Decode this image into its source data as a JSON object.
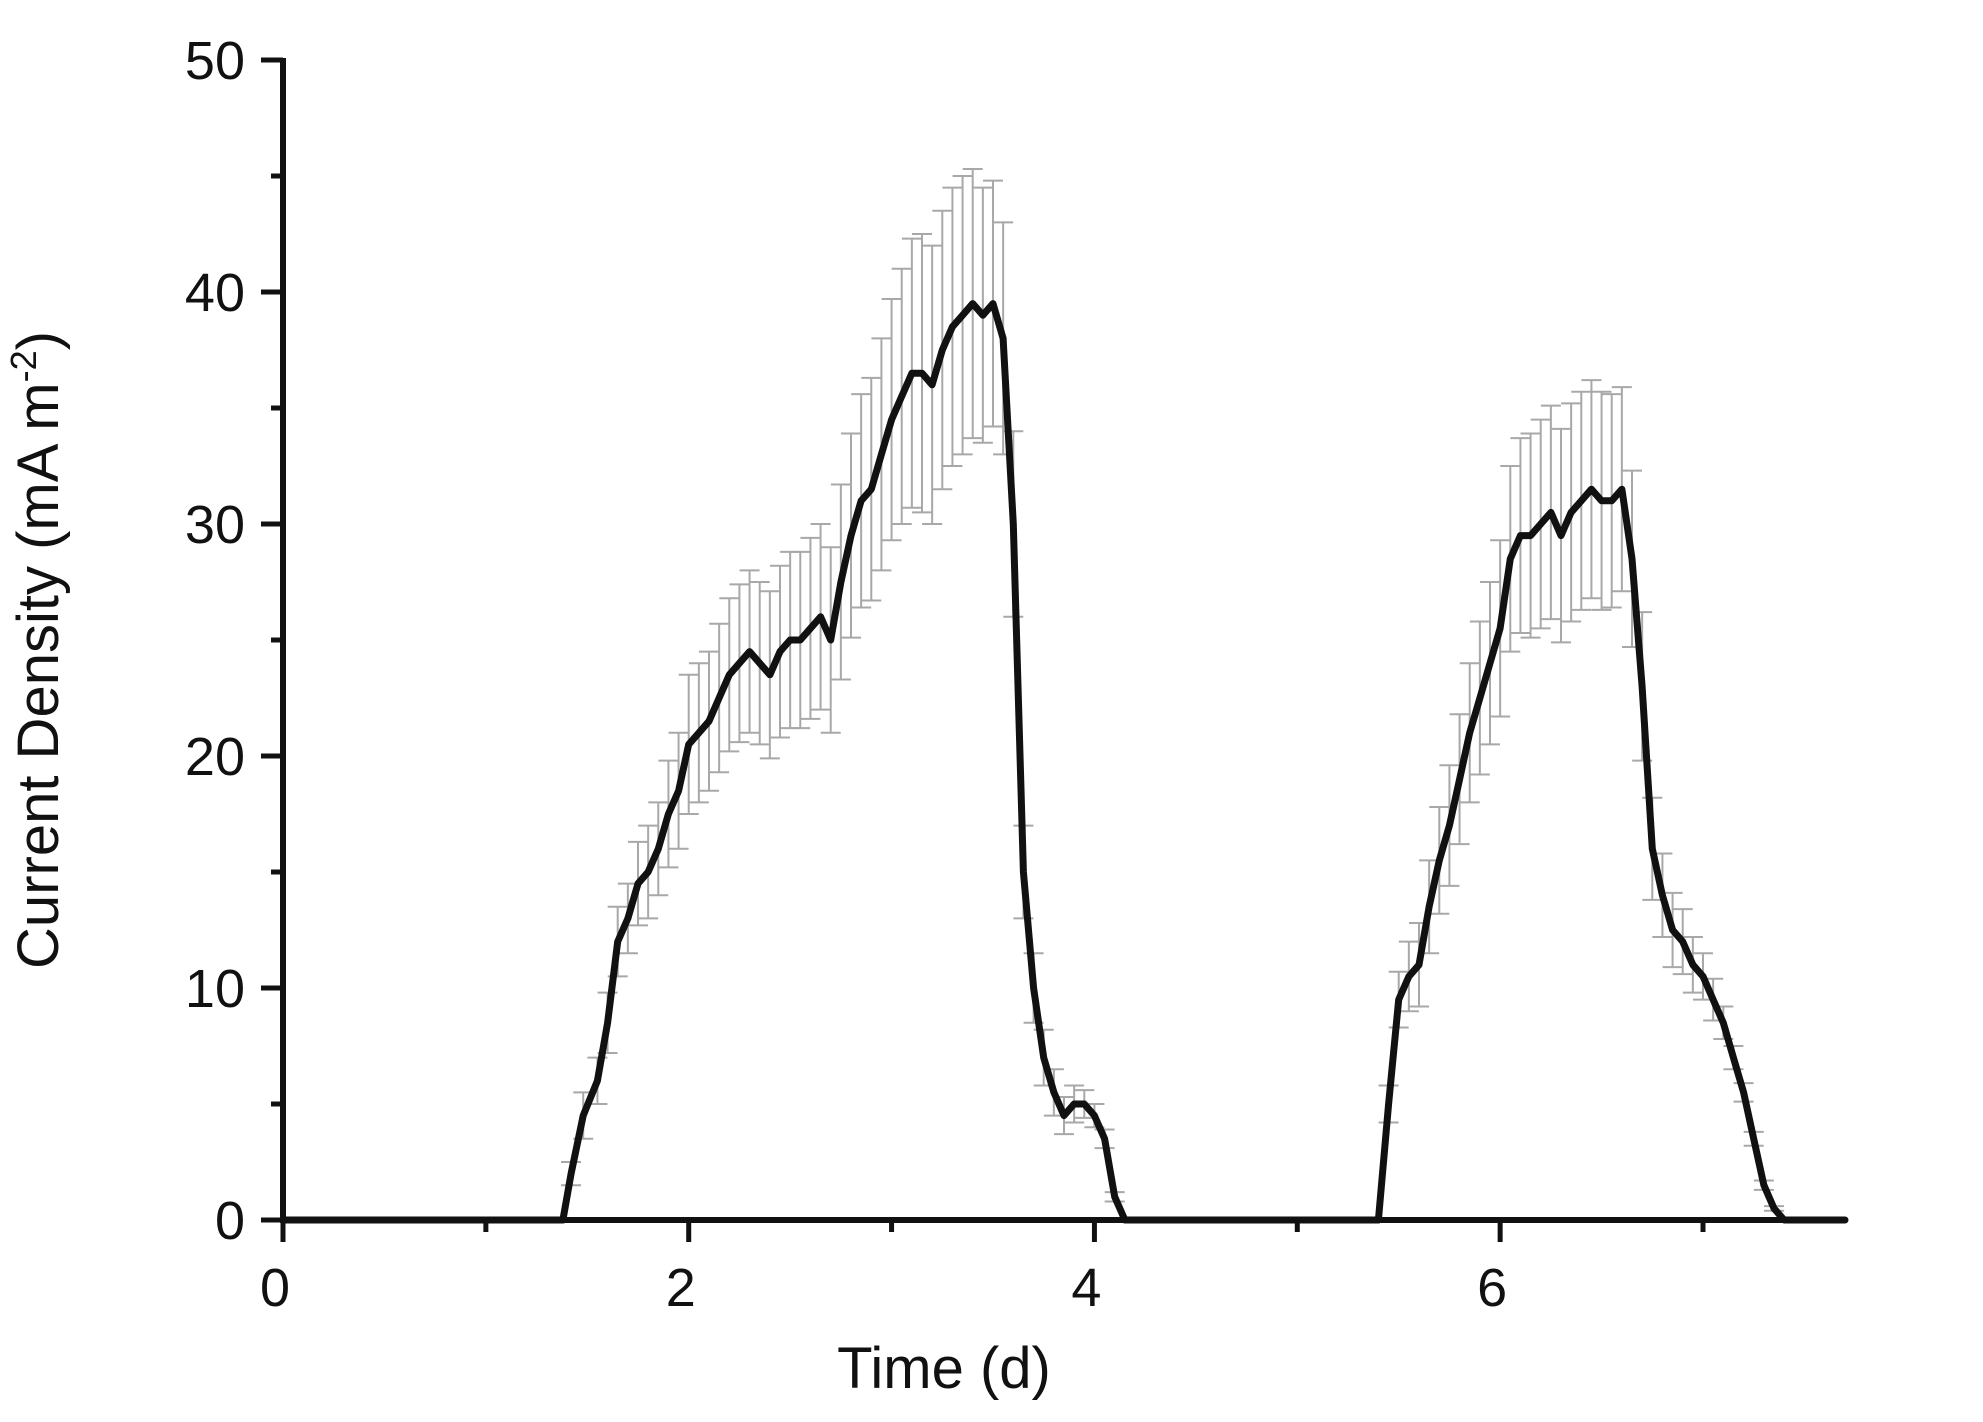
{
  "chart_data": {
    "type": "line",
    "title": "",
    "xlabel": "Time (d)",
    "ylabel_main": "Current Density (mA m",
    "ylabel_sup": "-2",
    "ylabel_end": ")",
    "xlim": [
      0,
      7.7
    ],
    "ylim": [
      0,
      50
    ],
    "x_ticks": [
      0,
      2,
      4,
      6
    ],
    "x_tick_labels": [
      "0",
      "2",
      "4",
      "6"
    ],
    "x_minor_ticks": [
      1,
      3,
      5,
      7
    ],
    "y_ticks": [
      0,
      10,
      20,
      30,
      40,
      50
    ],
    "y_tick_labels": [
      "0",
      "10",
      "20",
      "30",
      "40",
      "50"
    ],
    "y_minor_ticks": [
      5,
      15,
      25,
      35,
      45
    ],
    "grid": false,
    "line_color": "#111111",
    "error_color": "#a8a8a8",
    "series": [
      {
        "x": [
          0,
          1.38,
          1.42,
          1.48,
          1.55,
          1.6,
          1.65,
          1.7,
          1.75,
          1.8,
          1.85,
          1.9,
          1.95,
          2.0,
          2.05,
          2.1,
          2.15,
          2.2,
          2.25,
          2.3,
          2.35,
          2.4,
          2.45,
          2.5,
          2.55,
          2.6,
          2.65,
          2.7,
          2.75,
          2.8,
          2.85,
          2.9,
          2.95,
          3.0,
          3.05,
          3.1,
          3.15,
          3.2,
          3.25,
          3.3,
          3.35,
          3.4,
          3.45,
          3.5,
          3.55,
          3.6,
          3.65,
          3.7,
          3.75,
          3.8,
          3.85,
          3.9,
          3.95,
          4.0,
          4.05,
          4.1,
          4.15,
          4.2,
          4.25,
          4.3,
          4.35,
          5.4,
          5.45,
          5.5,
          5.55,
          5.6,
          5.65,
          5.7,
          5.75,
          5.8,
          5.85,
          5.9,
          5.95,
          6.0,
          6.05,
          6.1,
          6.15,
          6.2,
          6.25,
          6.3,
          6.35,
          6.4,
          6.45,
          6.5,
          6.55,
          6.6,
          6.65,
          6.7,
          6.75,
          6.8,
          6.85,
          6.9,
          6.95,
          7.0,
          7.05,
          7.1,
          7.15,
          7.2,
          7.25,
          7.3,
          7.35,
          7.4,
          7.45,
          7.5,
          7.7
        ],
        "y": [
          0,
          0,
          2.0,
          4.5,
          6.0,
          8.5,
          12.0,
          13.0,
          14.5,
          15.0,
          16.0,
          17.5,
          18.5,
          20.5,
          21.0,
          21.5,
          22.5,
          23.5,
          24.0,
          24.5,
          24.0,
          23.5,
          24.5,
          25.0,
          25.0,
          25.5,
          26.0,
          25.0,
          27.5,
          29.5,
          31.0,
          31.5,
          33.0,
          34.5,
          35.5,
          36.5,
          36.5,
          36.0,
          37.5,
          38.5,
          39.0,
          39.5,
          39.0,
          39.5,
          38.0,
          30.0,
          15.0,
          10.0,
          7.0,
          5.5,
          4.5,
          5.0,
          5.0,
          4.5,
          3.5,
          1.0,
          0,
          0,
          0,
          0,
          0,
          0,
          5.0,
          9.5,
          10.5,
          11.0,
          13.5,
          15.5,
          17.0,
          19.0,
          21.0,
          22.5,
          24.0,
          25.5,
          28.5,
          29.5,
          29.5,
          30.0,
          30.5,
          29.5,
          30.5,
          31.0,
          31.5,
          31.0,
          31.0,
          31.5,
          28.5,
          23.0,
          16.0,
          14.0,
          12.5,
          12.0,
          11.0,
          10.5,
          9.5,
          8.5,
          7.0,
          5.5,
          3.5,
          1.5,
          0.5,
          0,
          0,
          0,
          0
        ],
        "err": [
          0,
          0,
          0.5,
          1.0,
          1.0,
          1.3,
          1.5,
          1.5,
          1.8,
          2.0,
          2.0,
          2.3,
          2.5,
          3.0,
          3.0,
          3.0,
          3.2,
          3.3,
          3.4,
          3.5,
          3.5,
          3.6,
          3.7,
          3.8,
          3.8,
          3.9,
          4.0,
          4.0,
          4.2,
          4.4,
          4.6,
          4.8,
          5.0,
          5.2,
          5.5,
          5.8,
          6.0,
          6.0,
          6.0,
          6.0,
          6.0,
          5.8,
          5.5,
          5.3,
          5.0,
          4.0,
          2.0,
          1.5,
          1.2,
          1.0,
          0.8,
          0.8,
          0.6,
          0.5,
          0.4,
          0.2,
          0,
          0,
          0,
          0,
          0,
          0,
          0.8,
          1.2,
          1.5,
          1.8,
          2.0,
          2.3,
          2.6,
          2.8,
          3.0,
          3.3,
          3.5,
          3.8,
          4.0,
          4.2,
          4.4,
          4.5,
          4.6,
          4.6,
          4.7,
          4.7,
          4.7,
          4.7,
          4.6,
          4.4,
          3.8,
          3.2,
          2.2,
          1.8,
          1.6,
          1.4,
          1.2,
          1.0,
          0.9,
          0.7,
          0.5,
          0.4,
          0.3,
          0.2,
          0.1,
          0,
          0,
          0,
          0
        ]
      }
    ]
  }
}
